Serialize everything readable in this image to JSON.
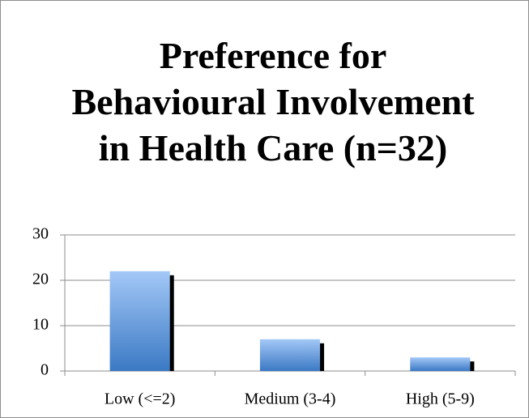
{
  "chart_data": {
    "type": "bar",
    "title": "Preference for Behavioural Involvement in Health Care (n=32)",
    "categories": [
      "Low (<=2)",
      "Medium (3-4)",
      "High (5-9)"
    ],
    "values": [
      22,
      7,
      3
    ],
    "color": "#4a86d0",
    "ylim": [
      0,
      30
    ],
    "yticks": [
      0,
      10,
      20,
      30
    ],
    "grid": true
  }
}
